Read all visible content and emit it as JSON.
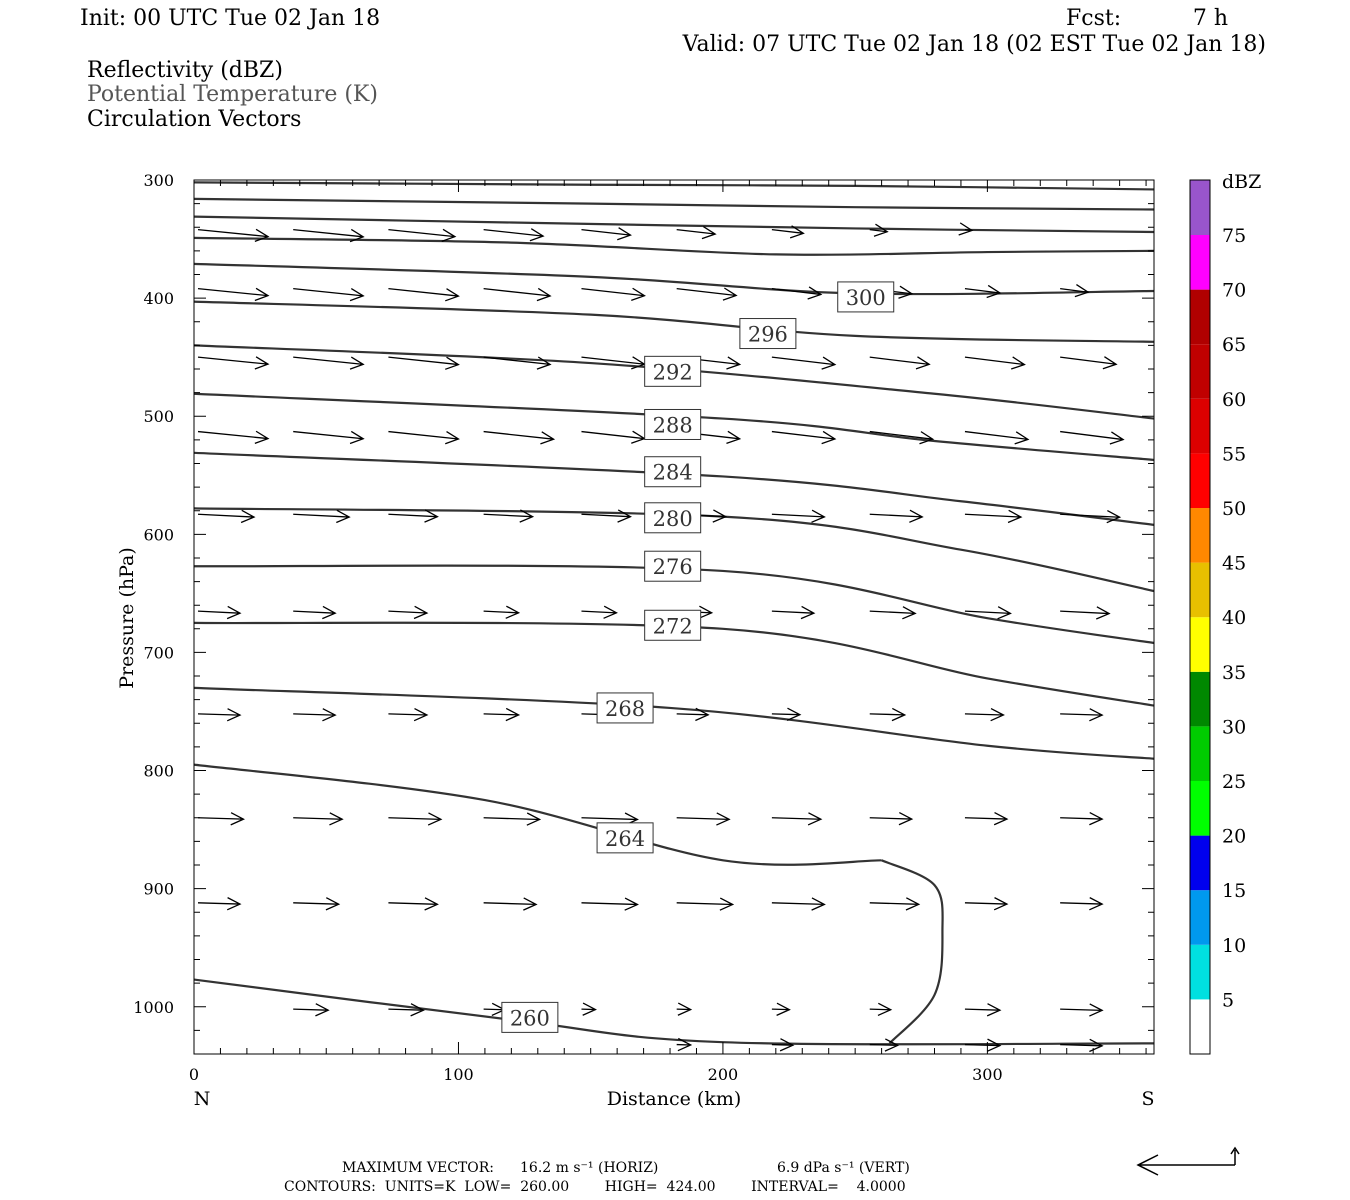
{
  "header": {
    "init": "Init: 00 UTC Tue 02 Jan 18",
    "fcst_label": "Fcst:",
    "fcst_value": "7 h",
    "valid": "Valid: 07 UTC Tue 02 Jan 18 (02 EST Tue 02 Jan 18)",
    "fields": [
      "Reflectivity (dBZ)",
      "Potential Temperature (K)",
      "Circulation Vectors"
    ]
  },
  "chart_data": {
    "type": "line",
    "xlabel": "Distance (km)",
    "ylabel": "Pressure (hPa)",
    "xlim": [
      0,
      363
    ],
    "ylim": [
      1040,
      300
    ],
    "x_ticks": [
      0,
      100,
      200,
      300
    ],
    "y_ticks": [
      300,
      400,
      500,
      600,
      700,
      800,
      900,
      1000
    ],
    "x_end_labels": {
      "left": "N",
      "right": "S"
    },
    "colorbar": {
      "unit": "dBZ",
      "levels": [
        5,
        10,
        15,
        20,
        25,
        30,
        35,
        40,
        45,
        50,
        55,
        60,
        65,
        70,
        75
      ],
      "colors": [
        "#00e0e0",
        "#0099ee",
        "#0000ee",
        "#00ff00",
        "#00cc00",
        "#008800",
        "#ffff00",
        "#e8c000",
        "#ff8800",
        "#ff0000",
        "#dd0000",
        "#c00000",
        "#b00000",
        "#ff00ff",
        "#9955cc"
      ]
    },
    "contour_labels": [
      {
        "text": "300",
        "x": 254,
        "p": 399
      },
      {
        "text": "296",
        "x": 217,
        "p": 430
      },
      {
        "text": "292",
        "x": 181,
        "p": 462
      },
      {
        "text": "288",
        "x": 181,
        "p": 507
      },
      {
        "text": "284",
        "x": 181,
        "p": 547
      },
      {
        "text": "280",
        "x": 181,
        "p": 586
      },
      {
        "text": "276",
        "x": 181,
        "p": 627
      },
      {
        "text": "272",
        "x": 181,
        "p": 677
      },
      {
        "text": "268",
        "x": 163,
        "p": 747
      },
      {
        "text": "264",
        "x": 163,
        "p": 857
      },
      {
        "text": "260",
        "x": 127,
        "p": 1009
      }
    ],
    "isentropes": [
      [
        [
          0,
          302
        ],
        [
          150,
          304
        ],
        [
          250,
          305
        ],
        [
          363,
          308
        ]
      ],
      [
        [
          0,
          316
        ],
        [
          150,
          320
        ],
        [
          250,
          323
        ],
        [
          363,
          325
        ]
      ],
      [
        [
          0,
          331
        ],
        [
          120,
          336
        ],
        [
          250,
          341
        ],
        [
          363,
          344
        ]
      ],
      [
        [
          0,
          349
        ],
        [
          120,
          353
        ],
        [
          220,
          363
        ],
        [
          300,
          361
        ],
        [
          363,
          360
        ]
      ],
      [
        [
          0,
          371
        ],
        [
          150,
          382
        ],
        [
          250,
          396
        ],
        [
          363,
          394
        ]
      ],
      [
        [
          0,
          403
        ],
        [
          150,
          414
        ],
        [
          250,
          432
        ],
        [
          363,
          437
        ]
      ],
      [
        [
          0,
          440
        ],
        [
          150,
          455
        ],
        [
          280,
          481
        ],
        [
          363,
          502
        ]
      ],
      [
        [
          0,
          481
        ],
        [
          200,
          502
        ],
        [
          280,
          521
        ],
        [
          363,
          537
        ]
      ],
      [
        [
          0,
          531
        ],
        [
          200,
          551
        ],
        [
          290,
          572
        ],
        [
          363,
          592
        ]
      ],
      [
        [
          0,
          578
        ],
        [
          200,
          585
        ],
        [
          290,
          613
        ],
        [
          363,
          648
        ]
      ],
      [
        [
          0,
          627
        ],
        [
          200,
          631
        ],
        [
          300,
          671
        ],
        [
          363,
          692
        ]
      ],
      [
        [
          0,
          675
        ],
        [
          200,
          680
        ],
        [
          300,
          722
        ],
        [
          363,
          745
        ]
      ],
      [
        [
          0,
          730
        ],
        [
          180,
          747
        ],
        [
          300,
          779
        ],
        [
          363,
          790
        ]
      ],
      [
        [
          0,
          795
        ],
        [
          110,
          825
        ],
        [
          200,
          876
        ],
        [
          260,
          876
        ]
      ],
      [
        [
          0,
          977
        ],
        [
          120,
          1011
        ],
        [
          200,
          1030
        ],
        [
          363,
          1031
        ]
      ]
    ],
    "closed_contour": [
      [
        260,
        876
      ],
      [
        280,
        897
      ],
      [
        283,
        936
      ],
      [
        280,
        990
      ],
      [
        263,
        1031
      ]
    ],
    "vectors": [
      {
        "p": 342,
        "u": [
          1.0,
          1.0,
          0.95,
          0.85,
          0.7,
          0.55,
          0.45,
          0.25,
          0.1,
          0.0,
          0.1
        ]
      },
      {
        "p": 392,
        "u": [
          1.0,
          1.0,
          1.0,
          0.95,
          0.9,
          0.85,
          0.7,
          0.6,
          0.5,
          0.4,
          0.3
        ]
      },
      {
        "p": 450,
        "u": [
          1.0,
          1.0,
          1.0,
          0.95,
          0.9,
          0.9,
          0.9,
          0.85,
          0.85,
          0.8,
          0.7
        ]
      },
      {
        "p": 513,
        "u": [
          1.0,
          1.0,
          1.0,
          1.0,
          0.9,
          0.9,
          0.9,
          0.9,
          0.9,
          0.9,
          0.8
        ]
      },
      {
        "p": 583,
        "u": [
          0.8,
          0.8,
          0.7,
          0.7,
          0.7,
          0.7,
          0.75,
          0.75,
          0.8,
          0.85,
          0.85
        ]
      },
      {
        "p": 665,
        "u": [
          0.6,
          0.6,
          0.55,
          0.5,
          0.5,
          0.5,
          0.6,
          0.65,
          0.65,
          0.7,
          0.7
        ]
      },
      {
        "p": 752,
        "u": [
          0.6,
          0.6,
          0.55,
          0.5,
          0.45,
          0.45,
          0.4,
          0.5,
          0.55,
          0.6,
          0.6
        ]
      },
      {
        "p": 840,
        "u": [
          0.65,
          0.7,
          0.75,
          0.8,
          0.8,
          0.75,
          0.7,
          0.6,
          0.6,
          0.6,
          0.6
        ]
      },
      {
        "p": 912,
        "u": [
          0.6,
          0.65,
          0.7,
          0.75,
          0.8,
          0.8,
          0.75,
          0.7,
          0.6,
          0.6,
          0.6
        ]
      },
      {
        "p": 1002,
        "u": [
          0.0,
          0.5,
          0.5,
          0.3,
          0.2,
          0.2,
          0.25,
          0.3,
          0.5,
          0.6,
          0.6
        ]
      },
      {
        "p": 1032,
        "u": [
          0.0,
          0.0,
          0.0,
          0.0,
          0.0,
          0.2,
          0.3,
          0.4,
          0.5,
          0.6,
          0.6
        ]
      }
    ]
  },
  "footer": {
    "max_vector_label": "MAXIMUM VECTOR:",
    "max_vector_horiz": "16.2 m s⁻¹ (HORIZ)",
    "max_vector_vert": "6.9 dPa s⁻¹ (VERT)",
    "contours": "CONTOURS:  UNITS=K  LOW=  260.00        HIGH=  424.00        INTERVAL=    4.0000"
  }
}
